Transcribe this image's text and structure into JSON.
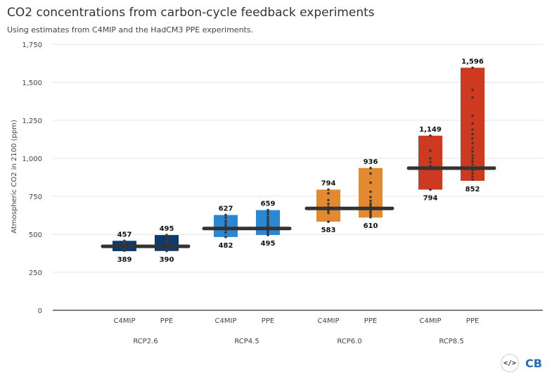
{
  "title": "CO2 concentrations from carbon-cycle feedback experiments",
  "subtitle": "Using estimates from C4MIP and the HadCM3 PPE experiments.",
  "logos": {
    "code_icon": "code-brackets-icon",
    "brand_text": "CB"
  },
  "chart_data": {
    "type": "bar",
    "ylabel": "Atmospheric CO2 in 2100 (ppm)",
    "ylim": [
      0,
      1750
    ],
    "yticks": [
      0,
      250,
      500,
      750,
      1000,
      1250,
      1500,
      1750
    ],
    "ytick_labels": [
      "0",
      "250",
      "500",
      "750",
      "1,000",
      "1,250",
      "1,500",
      "1,750"
    ],
    "grid": true,
    "categories": [
      "RCP2.6",
      "RCP4.5",
      "RCP6.0",
      "RCP8.5"
    ],
    "subcategories": [
      "C4MIP",
      "PPE"
    ],
    "colors": [
      "#0c3c6e",
      "#2b87d1",
      "#e3892f",
      "#cd3a1f"
    ],
    "reference_line_color": "#333333",
    "scenarios": [
      {
        "name": "RCP2.6",
        "reference": 421,
        "bars": [
          {
            "sub": "C4MIP",
            "min": 389,
            "max": 457,
            "min_label": "389",
            "max_label": "457",
            "points": [
              392,
              402,
              412,
              420,
              428,
              436,
              444,
              452,
              457
            ]
          },
          {
            "sub": "PPE",
            "min": 390,
            "max": 495,
            "min_label": "390",
            "max_label": "495",
            "points": [
              390,
              398,
              406,
              414,
              420,
              426,
              434,
              442,
              452,
              462,
              474,
              486,
              495
            ]
          }
        ]
      },
      {
        "name": "RCP4.5",
        "reference": 538,
        "bars": [
          {
            "sub": "C4MIP",
            "min": 482,
            "max": 627,
            "min_label": "482",
            "max_label": "627",
            "points": [
              482,
              512,
              530,
              545,
              558,
              575,
              590,
              610,
              627
            ]
          },
          {
            "sub": "PPE",
            "min": 495,
            "max": 659,
            "min_label": "495",
            "max_label": "659",
            "points": [
              495,
              510,
              522,
              534,
              545,
              556,
              568,
              582,
              598,
              615,
              634,
              648,
              659
            ]
          }
        ]
      },
      {
        "name": "RCP6.0",
        "reference": 670,
        "bars": [
          {
            "sub": "C4MIP",
            "min": 583,
            "max": 794,
            "min_label": "583",
            "max_label": "794",
            "points": [
              583,
              640,
              655,
              668,
              680,
              700,
              725,
              770,
              794
            ]
          },
          {
            "sub": "PPE",
            "min": 610,
            "max": 936,
            "min_label": "610",
            "max_label": "936",
            "points": [
              612,
              625,
              638,
              650,
              662,
              674,
              688,
              702,
              720,
              745,
              780,
              840,
              900,
              936
            ]
          }
        ]
      },
      {
        "name": "RCP8.5",
        "reference": 935,
        "bars": [
          {
            "sub": "C4MIP",
            "min": 794,
            "max": 1149,
            "min_label": "794",
            "max_label": "1,149",
            "points": [
              794,
              930,
              950,
              975,
              1000,
              1050,
              1149
            ]
          },
          {
            "sub": "PPE",
            "min": 852,
            "max": 1596,
            "min_label": "852",
            "max_label": "1,596",
            "points": [
              860,
              880,
              900,
              920,
              940,
              960,
              980,
              1000,
              1020,
              1045,
              1070,
              1100,
              1130,
              1160,
              1190,
              1230,
              1280,
              1400,
              1450,
              1596
            ]
          }
        ]
      }
    ]
  }
}
